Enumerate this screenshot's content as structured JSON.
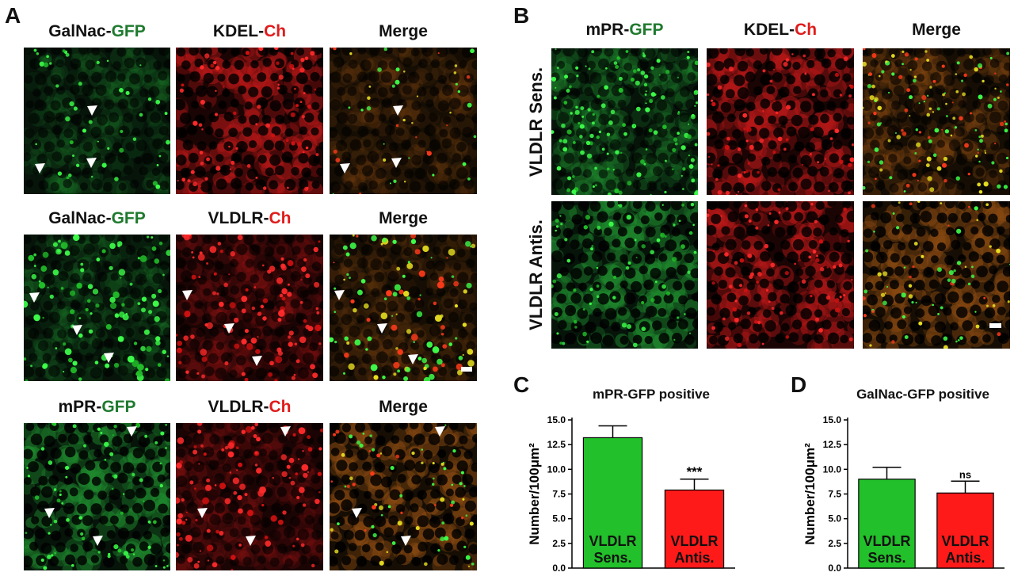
{
  "panels": {
    "A": {
      "letter": "A",
      "rows": [
        {
          "c1": {
            "prefix": "GalNac-",
            "suffix": "GFP"
          },
          "c2": {
            "prefix": "KDEL-",
            "suffix": "Ch"
          },
          "c3": "Merge"
        },
        {
          "c1": {
            "prefix": "GalNac-",
            "suffix": "GFP"
          },
          "c2": {
            "prefix": "VLDLR-",
            "suffix": "Ch"
          },
          "c3": "Merge"
        },
        {
          "c1": {
            "prefix": "mPR-",
            "suffix": "GFP"
          },
          "c2": {
            "prefix": "VLDLR-",
            "suffix": "Ch"
          },
          "c3": "Merge"
        }
      ]
    },
    "B": {
      "letter": "B",
      "cols": [
        {
          "prefix": "mPR-",
          "suffix": "GFP"
        },
        {
          "prefix": "KDEL-",
          "suffix": "Ch"
        },
        {
          "text": "Merge"
        }
      ],
      "row_labels": [
        "VLDLR Sens.",
        "VLDLR Antis."
      ]
    },
    "C": {
      "letter": "C"
    },
    "D": {
      "letter": "D"
    }
  },
  "colors": {
    "gfp_text": "#1f7a2e",
    "ch_text": "#e01b1b",
    "bar_green": "#22c02a",
    "bar_red": "#ff1a1a"
  },
  "chart_data": [
    {
      "type": "bar",
      "title": "mPR-GFP positive",
      "ylabel": "Number/100μm²",
      "categories": [
        "VLDLR Sens.",
        "VLDLR Antis."
      ],
      "category_lines": [
        [
          "VLDLR",
          "Sens."
        ],
        [
          "VLDLR",
          "Antis."
        ]
      ],
      "values": [
        13.2,
        7.9
      ],
      "errors": [
        1.2,
        1.1
      ],
      "annotations": [
        "",
        "***"
      ],
      "ylim": [
        0,
        15
      ],
      "yticks": [
        "0.0",
        "2.5",
        "5.0",
        "7.5",
        "10.0",
        "12.5",
        "15.0"
      ]
    },
    {
      "type": "bar",
      "title": "GalNac-GFP positive",
      "ylabel": "Number/100μm²",
      "categories": [
        "VLDLR Sens.",
        "VLDLR Antis."
      ],
      "category_lines": [
        [
          "VLDLR",
          "Sens."
        ],
        [
          "VLDLR",
          "Antis."
        ]
      ],
      "values": [
        9.0,
        7.6
      ],
      "errors": [
        1.2,
        1.2
      ],
      "annotations": [
        "",
        "ns"
      ],
      "ylim": [
        0,
        15
      ],
      "yticks": [
        "0.0",
        "2.5",
        "5.0",
        "7.5",
        "10.0",
        "12.5",
        "15.0"
      ]
    }
  ]
}
